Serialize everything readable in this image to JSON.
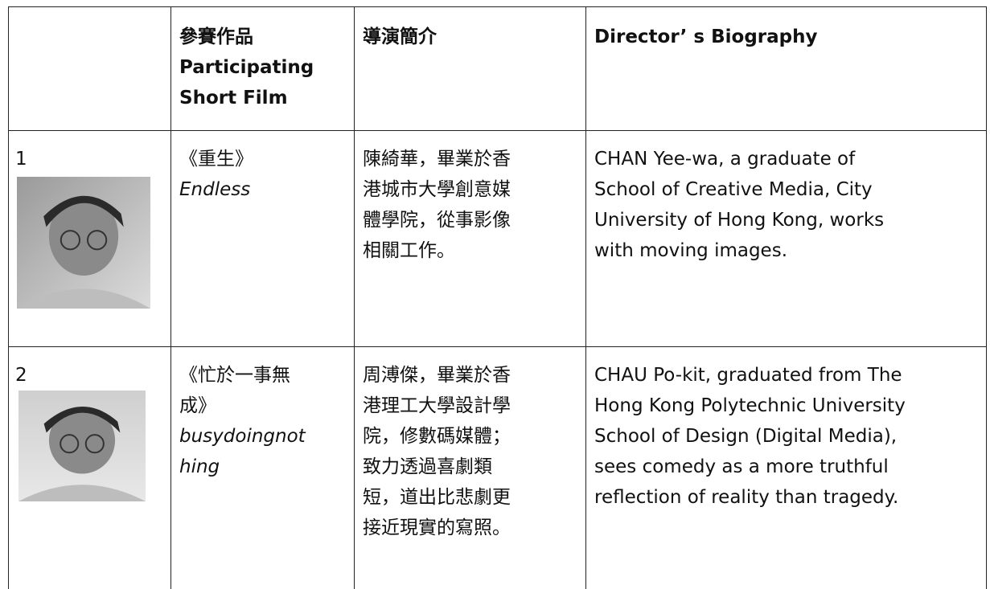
{
  "table": {
    "header": [
      [
        "參賽作品",
        "Participating",
        "Short Film"
      ],
      [
        "導演簡介"
      ],
      [
        "Director’ s Biography"
      ]
    ],
    "rows": [
      {
        "number": "1",
        "film_zh": [
          "《重生》"
        ],
        "film_en": [
          "Endless"
        ],
        "bio_zh": [
          "陳綺華，畢業於香",
          "港城市大學創意媒",
          "體學院，從事影像",
          "相關工作。"
        ],
        "bio_en": [
          "CHAN Yee-wa, a graduate of",
          "School of Creative Media, City",
          "University of Hong Kong, works",
          "with moving images."
        ]
      },
      {
        "number": "2",
        "film_zh": [
          "《忙於一事無",
          "成》"
        ],
        "film_en": [
          "busydoingnot",
          "hing"
        ],
        "bio_zh": [
          "周溥傑，畢業於香",
          "港理工大學設計學",
          "院，修數碼媒體；",
          "致力透過喜劇類",
          "短，道出比悲劇更",
          "接近現實的寫照。"
        ],
        "bio_en": [
          "CHAU Po-kit, graduated from The",
          "Hong Kong Polytechnic University",
          "School of Design (Digital Media),",
          "sees comedy as a more truthful",
          "reflection of reality than tragedy."
        ]
      }
    ]
  }
}
